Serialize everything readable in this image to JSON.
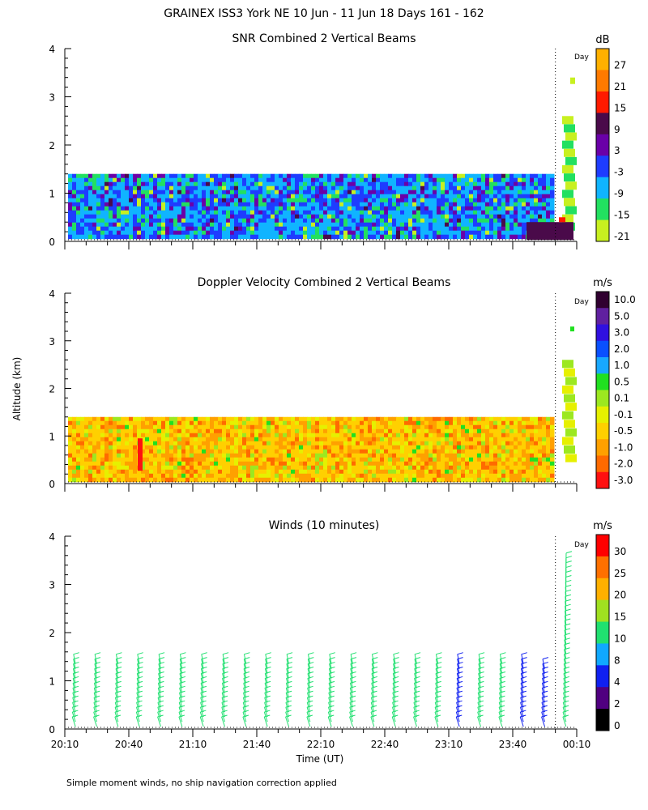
{
  "figure": {
    "title": "GRAINEX ISS3 York NE  10 Jun - 11 Jun 18 Days 161 - 162",
    "ylabel": "Altitude (km)",
    "xlabel": "Time (UT)",
    "footnote": "Simple moment winds, no ship navigation correction applied",
    "day_marker_label": "Day"
  },
  "chart_data": [
    {
      "type": "heatmap",
      "title": "SNR Combined 2 Vertical Beams",
      "colorbar_unit": "dB",
      "colorbar_ticks": [
        "27",
        "21",
        "15",
        "9",
        "3",
        "-3",
        "-9",
        "-15",
        "-21"
      ],
      "colorbar_colors": [
        "#ffb000",
        "#ff7a00",
        "#ff1a00",
        "#4a0a4a",
        "#6a00a8",
        "#1e3cff",
        "#10b4ff",
        "#22e060",
        "#c8f020"
      ],
      "yticks": [
        "0",
        "1",
        "2",
        "3",
        "4"
      ],
      "ylim": [
        0,
        4
      ],
      "data_top_km": 1.4,
      "dominant_levels": [
        "-9",
        "-3",
        "3",
        "-15"
      ]
    },
    {
      "type": "heatmap",
      "title": "Doppler Velocity Combined 2 Vertical Beams",
      "colorbar_unit": "m/s",
      "colorbar_ticks": [
        "10.0",
        "5.0",
        "3.0",
        "2.0",
        "1.0",
        "0.5",
        "0.1",
        "-0.1",
        "-0.5",
        "-1.0",
        "-2.0",
        "-3.0"
      ],
      "colorbar_colors": [
        "#300030",
        "#6020a0",
        "#3010e0",
        "#0a50ff",
        "#18a8ff",
        "#20e020",
        "#9ce820",
        "#e6f000",
        "#ffd000",
        "#ffa000",
        "#ff6a00",
        "#ff1010"
      ],
      "yticks": [
        "0",
        "1",
        "2",
        "3",
        "4"
      ],
      "ylim": [
        0,
        4
      ],
      "data_top_km": 1.4,
      "dominant_levels": [
        "-0.5",
        "-1.0",
        "-0.1"
      ]
    },
    {
      "type": "scatter",
      "title": "Winds (10 minutes)",
      "colorbar_unit": "m/s",
      "colorbar_ticks": [
        "30",
        "25",
        "20",
        "15",
        "10",
        "8",
        "4",
        "2",
        "0"
      ],
      "colorbar_colors": [
        "#ff0000",
        "#ff7000",
        "#ffb000",
        "#a0e020",
        "#20e070",
        "#10a8ff",
        "#1020f0",
        "#500080",
        "#000000"
      ],
      "yticks": [
        "0",
        "1",
        "2",
        "3",
        "4"
      ],
      "ylim": [
        0,
        4
      ],
      "xticks": [
        "20:10",
        "20:40",
        "21:10",
        "21:40",
        "22:10",
        "22:40",
        "23:10",
        "23:40",
        "00:10"
      ],
      "profile_times": [
        "20:15",
        "20:25",
        "20:35",
        "20:45",
        "20:55",
        "21:05",
        "21:15",
        "21:25",
        "21:35",
        "21:45",
        "21:55",
        "22:05",
        "22:15",
        "22:25",
        "22:35",
        "22:45",
        "22:55",
        "23:05",
        "23:15",
        "23:25",
        "23:35",
        "23:45",
        "23:55",
        "00:05"
      ],
      "profile_top_km": [
        1.45,
        1.45,
        1.4,
        1.4,
        1.4,
        1.4,
        1.45,
        1.45,
        1.4,
        1.4,
        1.4,
        1.4,
        1.45,
        1.45,
        1.4,
        1.4,
        1.4,
        1.4,
        1.4,
        1.4,
        1.4,
        1.4,
        1.3,
        3.5
      ],
      "profile_speed_ms": [
        11,
        11,
        11,
        11,
        11,
        11,
        11,
        11,
        11,
        11,
        11,
        11,
        11,
        11,
        11,
        11,
        10,
        10,
        6,
        11,
        11,
        6,
        5,
        12
      ]
    }
  ]
}
